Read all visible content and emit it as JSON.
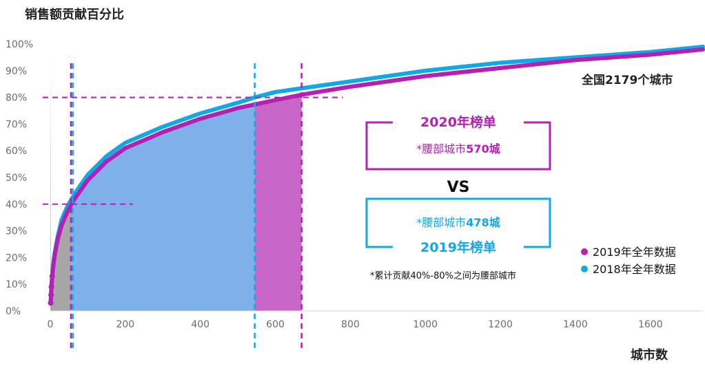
{
  "chart_data": {
    "type": "line",
    "title": "销售额贡献百分比",
    "xlabel": "城市数",
    "ylabel": "",
    "xlim": [
      0,
      1740
    ],
    "ylim": [
      0,
      100
    ],
    "x_ticks": [
      "0",
      "200",
      "400",
      "600",
      "800",
      "1000",
      "1200",
      "1400",
      "1600"
    ],
    "y_ticks": [
      "0%",
      "10%",
      "20%",
      "30%",
      "40%",
      "50%",
      "60%",
      "70%",
      "80%",
      "90%",
      "100%"
    ],
    "series": [
      {
        "name": "2019年全年数据",
        "color": "#b41fb4",
        "x": [
          1,
          2,
          3,
          5,
          8,
          12,
          20,
          30,
          45,
          60,
          80,
          100,
          150,
          200,
          250,
          300,
          400,
          500,
          600,
          670,
          800,
          1000,
          1200,
          1400,
          1600,
          1740
        ],
        "y": [
          3,
          6,
          9,
          13,
          17,
          21,
          27,
          32,
          37,
          41,
          45,
          49,
          56,
          61,
          64,
          67,
          72,
          76,
          79,
          81,
          84,
          88,
          91,
          94,
          96,
          98
        ]
      },
      {
        "name": "2018年全年数据",
        "color": "#12a8e6",
        "x": [
          1,
          2,
          3,
          5,
          8,
          12,
          20,
          30,
          45,
          57,
          80,
          100,
          150,
          200,
          250,
          300,
          400,
          500,
          545,
          600,
          800,
          1000,
          1200,
          1400,
          1600,
          1740
        ],
        "y": [
          3,
          6,
          9,
          13,
          18,
          22,
          28,
          34,
          39,
          42,
          47,
          51,
          58,
          63,
          66,
          69,
          74,
          78,
          80,
          82,
          86,
          90,
          93,
          95,
          97,
          99
        ]
      }
    ],
    "regions": [
      {
        "x_from": 0,
        "x_to": 57,
        "color": "#a6a6a6"
      },
      {
        "x_from": 57,
        "x_to": 545,
        "color": "#7fb0ea"
      },
      {
        "x_from": 545,
        "x_to": 670,
        "color": "#c966c9"
      }
    ],
    "v_lines": [
      {
        "x": 55,
        "color": "#b41fb4"
      },
      {
        "x": 60,
        "color": "#12a8e6"
      },
      {
        "x": 545,
        "color": "#12a8e6"
      },
      {
        "x": 670,
        "color": "#b41fb4"
      }
    ],
    "h_lines": [
      {
        "y": 80,
        "color": "#b41fb4",
        "x_to": 780
      },
      {
        "y": 40,
        "color": "#b41fb4",
        "x_to": 220
      }
    ],
    "legend_placement": "bottom-right",
    "grid": false
  },
  "annotations": {
    "national": "全国2179个城市",
    "box2020_title": "2020年榜单",
    "box2020_text": "*腰部城市",
    "box2020_num": "570城",
    "vs": "VS",
    "box2019_text": "*腰部城市",
    "box2019_num": "478城",
    "box2019_title": "2019年榜单",
    "footnote": "*累计贡献40%-80%之间为腰部城市"
  },
  "colors": {
    "magenta": "#b41fb4",
    "cyan": "#12a8e6"
  }
}
